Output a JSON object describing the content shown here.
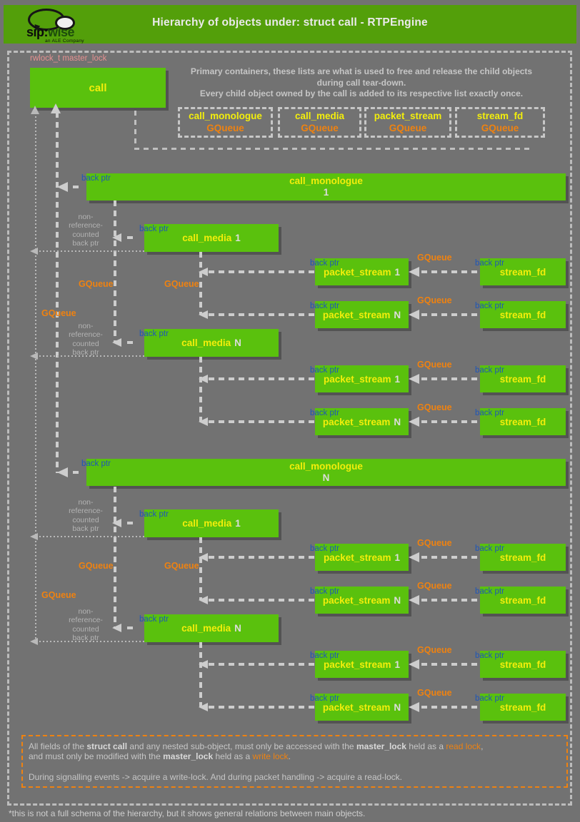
{
  "header": {
    "logo": {
      "sip": "sip:",
      "wise": "wise",
      "tagline": "an ALE Company"
    },
    "title": "Hierarchy of objects under: struct call - RTPEngine"
  },
  "master_lock_label": "rwlock_t master_lock",
  "intro": {
    "line1": "Primary containers, these lists are what is used to free and release the child objects",
    "line2": "during call tear-down.",
    "line3": "Every child object owned by the call is added to its respective list exactly once."
  },
  "containers": [
    {
      "title": "call_monologue",
      "type": "GQueue"
    },
    {
      "title": "call_media",
      "type": "GQueue"
    },
    {
      "title": "packet_stream",
      "type": "GQueue"
    },
    {
      "title": "stream_fd",
      "type": "GQueue"
    }
  ],
  "nodes": {
    "call": {
      "title": "call"
    },
    "call_monologue": {
      "title": "call_monologue"
    },
    "call_media": {
      "title": "call_media"
    },
    "packet_stream": {
      "title": "packet_stream"
    },
    "stream_fd": {
      "title": "stream_fd"
    }
  },
  "indices": {
    "one": "1",
    "n": "N"
  },
  "labels": {
    "back_ptr": "back ptr",
    "gqueue": "GQueue",
    "non_ref": "non-\nreference-\ncounted\nback ptr"
  },
  "note": {
    "lines": [
      [
        {
          "t": "All fields of the "
        },
        {
          "t": "struct call",
          "b": true
        },
        {
          "t": " and any nested sub-object, must only be accessed with the "
        },
        {
          "t": "master_lock",
          "b": true
        },
        {
          "t": " held as a "
        },
        {
          "t": "read lock",
          "o": true
        },
        {
          "t": ","
        }
      ],
      [
        {
          "t": "and must only be modified with the "
        },
        {
          "t": "master_lock",
          "b": true
        },
        {
          "t": " held as a "
        },
        {
          "t": "write lock",
          "o": true
        },
        {
          "t": "."
        }
      ],
      [
        {
          "t": ""
        }
      ],
      [
        {
          "t": "During signalling events -> acquire a write-lock. And during packet handling -> acquire a read-lock."
        }
      ]
    ]
  },
  "footnote": "*this is not a full schema of the hierarchy, but it shows general relations between main objects.",
  "colors": {
    "header_green": "#539f0a",
    "box_green": "#5ac10d",
    "yellow": "#f3ee0b",
    "orange": "#ef8210",
    "blue": "#1e56b8",
    "pink": "#e59090",
    "background_gray": "#727272",
    "dash_gray": "#cdcdcd"
  }
}
